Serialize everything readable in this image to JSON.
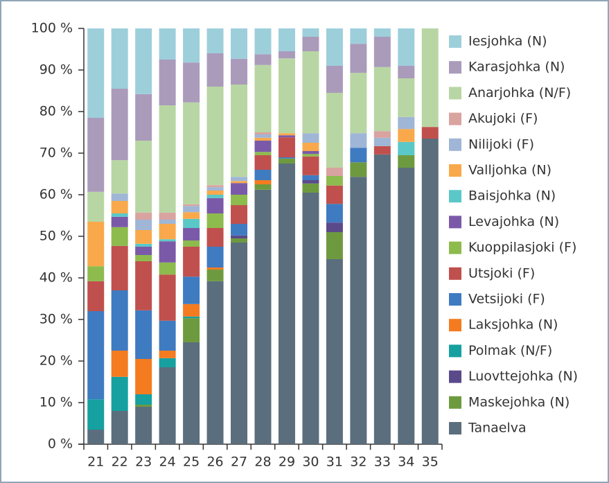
{
  "chart_data": {
    "type": "stacked_bar",
    "categories": [
      "21",
      "22",
      "23",
      "24",
      "25",
      "26",
      "27",
      "28",
      "29",
      "30",
      "31",
      "32",
      "33",
      "34",
      "35"
    ],
    "series": [
      {
        "name": "Tanaelva",
        "color": "#5b6e7d",
        "values": [
          3.5,
          8,
          9,
          18.5,
          24.5,
          39.2,
          48.5,
          61.2,
          67.5,
          60.5,
          44.5,
          64.3,
          69.7,
          66.5,
          73.5
        ]
      },
      {
        "name": "Maskejohka (N)",
        "color": "#6e9a3f",
        "values": [
          0,
          0,
          0.5,
          0,
          5.8,
          2.8,
          1,
          1.3,
          1.2,
          2.2,
          6.5,
          3.5,
          0,
          3,
          0
        ]
      },
      {
        "name": "Luovttejohka (N)",
        "color": "#5b4a8a",
        "values": [
          0,
          0,
          0,
          0,
          0,
          0,
          0.7,
          0,
          0,
          0.8,
          2.3,
          0,
          0,
          0,
          0
        ]
      },
      {
        "name": "Polmak (N/F)",
        "color": "#16a0a0",
        "values": [
          7.3,
          8.2,
          2.5,
          2.2,
          0.4,
          0,
          0,
          0,
          0,
          0,
          0,
          0,
          0,
          0,
          0
        ]
      },
      {
        "name": "Laksjohka (N)",
        "color": "#f47b20",
        "values": [
          0,
          6.3,
          8.5,
          1.8,
          3,
          0.5,
          0,
          1,
          0,
          0,
          0,
          0,
          0,
          0,
          0
        ]
      },
      {
        "name": "Vetsijoki (F)",
        "color": "#3f7bc1",
        "values": [
          21.2,
          14.5,
          11.7,
          7.2,
          6.6,
          5,
          2.8,
          2.5,
          0.3,
          1.2,
          4.5,
          3.5,
          0,
          0,
          0
        ]
      },
      {
        "name": "Utsjoki (F)",
        "color": "#c0504d",
        "values": [
          7.2,
          10.7,
          11.8,
          11.1,
          7.2,
          4.5,
          4.5,
          3.5,
          4.8,
          4.5,
          4.4,
          0,
          2,
          0,
          2.8
        ]
      },
      {
        "name": "Kuoppilasjoki (F)",
        "color": "#8dbb4e",
        "values": [
          3.6,
          4.5,
          1.5,
          2.9,
          1.5,
          3.5,
          2.5,
          0.8,
          0,
          0.6,
          2.3,
          0,
          0,
          0,
          0
        ]
      },
      {
        "name": "Levajohka (N)",
        "color": "#7a5aa8",
        "values": [
          0,
          2.5,
          2,
          5.1,
          3,
          3.7,
          2.8,
          2.7,
          0.5,
          0.7,
          0,
          0,
          0,
          0,
          0
        ]
      },
      {
        "name": "Baisjohka (N)",
        "color": "#5bc8c8",
        "values": [
          0,
          0.8,
          0.7,
          0.5,
          2.2,
          0.8,
          0,
          0,
          0,
          0,
          0,
          0,
          0,
          3.2,
          0
        ]
      },
      {
        "name": "Valljohka (N)",
        "color": "#f9a94b",
        "values": [
          10.7,
          3,
          3.3,
          3.7,
          1.6,
          1,
          0.5,
          0.7,
          0.5,
          2,
          0,
          0,
          0,
          3.1,
          0
        ]
      },
      {
        "name": "Nilijoki (F)",
        "color": "#9fb6d6",
        "values": [
          0,
          1.8,
          2.5,
          1,
          1.5,
          0.8,
          1,
          0.8,
          0,
          2.3,
          0,
          3.5,
          2,
          2.9,
          0
        ]
      },
      {
        "name": "Akujoki (F)",
        "color": "#d9a3a0",
        "values": [
          0,
          0,
          1.7,
          1.7,
          0.4,
          0.5,
          0,
          0.5,
          0,
          0,
          2,
          0,
          1.6,
          0,
          0
        ]
      },
      {
        "name": "Anarjohka (N/F)",
        "color": "#b8d6a3",
        "values": [
          7.2,
          8,
          17.3,
          25.8,
          24.5,
          23.7,
          22.2,
          16.2,
          18,
          19.7,
          18,
          14.5,
          15.4,
          9.3,
          23.7
        ]
      },
      {
        "name": "Karasjohka (N)",
        "color": "#aa9bbb",
        "values": [
          17.8,
          17.2,
          11.2,
          11,
          9.6,
          8,
          6.2,
          2.6,
          1.7,
          3.5,
          6.5,
          7,
          7.3,
          3,
          0
        ]
      },
      {
        "name": "Iesjohka (N)",
        "color": "#9dcfdb",
        "values": [
          21.5,
          14.5,
          15.8,
          7.5,
          8.2,
          6,
          7.3,
          6.2,
          5.5,
          2,
          9,
          3.7,
          2,
          9,
          0
        ]
      }
    ],
    "ylim": [
      0,
      100
    ],
    "yticks": [
      {
        "value": 0,
        "label": "0 %"
      },
      {
        "value": 10,
        "label": "10 %"
      },
      {
        "value": 20,
        "label": "20 %"
      },
      {
        "value": 30,
        "label": "30 %"
      },
      {
        "value": 40,
        "label": "40 %"
      },
      {
        "value": 50,
        "label": "50 %"
      },
      {
        "value": 60,
        "label": "60 %"
      },
      {
        "value": 70,
        "label": "70 %"
      },
      {
        "value": 80,
        "label": "80 %"
      },
      {
        "value": 90,
        "label": "90 %"
      },
      {
        "value": 100,
        "label": "100 %"
      }
    ],
    "legend": "right"
  }
}
